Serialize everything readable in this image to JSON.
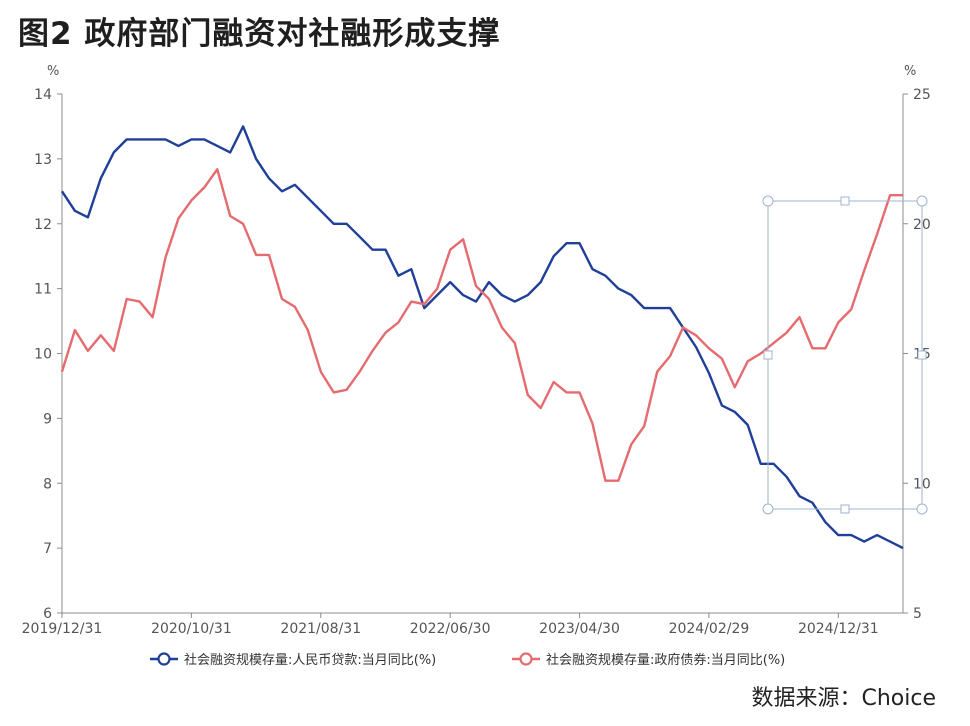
{
  "figure": {
    "title": "图2  政府部门融资对社融形成支撑",
    "source": "数据来源：Choice"
  },
  "chart_data": {
    "type": "line",
    "y_left": {
      "unit": "%",
      "ticks": [
        6,
        7,
        8,
        9,
        10,
        11,
        12,
        13,
        14
      ],
      "lim": [
        6,
        14
      ]
    },
    "y_right": {
      "unit": "%",
      "ticks": [
        5,
        10,
        15,
        20,
        25
      ],
      "lim": [
        5,
        25
      ]
    },
    "x_tick_labels": [
      "2019/12/31",
      "2020/10/31",
      "2021/08/31",
      "2022/06/30",
      "2023/04/30",
      "2024/02/29",
      "2024/12/31"
    ],
    "x_tick_index": [
      0,
      10,
      20,
      30,
      40,
      50,
      60
    ],
    "x_count": 66,
    "grid": false,
    "legend_position": "bottom",
    "series": [
      {
        "name": "社会融资规模存量:人民币贷款:当月同比(%)",
        "axis": "left",
        "color": "#1f3f98",
        "values": [
          12.5,
          12.2,
          12.1,
          12.7,
          13.1,
          13.3,
          13.3,
          13.3,
          13.3,
          13.2,
          13.3,
          13.3,
          13.2,
          13.1,
          13.5,
          13.0,
          12.7,
          12.5,
          12.6,
          12.4,
          12.2,
          12.0,
          12.0,
          11.8,
          11.6,
          11.6,
          11.2,
          11.3,
          10.7,
          10.9,
          11.1,
          10.9,
          10.8,
          11.1,
          10.9,
          10.8,
          10.9,
          11.1,
          11.5,
          11.7,
          11.7,
          11.3,
          11.2,
          11.0,
          10.9,
          10.7,
          10.7,
          10.7,
          10.4,
          10.1,
          9.7,
          9.2,
          9.1,
          8.9,
          8.3,
          8.3,
          8.1,
          7.8,
          7.7,
          7.4,
          7.2,
          7.2,
          7.1,
          7.2,
          7.1,
          7.0
        ]
      },
      {
        "name": "社会融资规模存量:政府债券:当月同比(%)",
        "axis": "right",
        "color": "#e56b6f",
        "values": [
          14.3,
          15.9,
          15.1,
          15.7,
          15.1,
          17.1,
          17.0,
          16.4,
          18.7,
          20.2,
          20.9,
          21.4,
          22.1,
          20.3,
          20.0,
          18.8,
          18.8,
          17.1,
          16.8,
          15.9,
          14.3,
          13.5,
          13.6,
          14.3,
          15.1,
          15.8,
          16.2,
          17.0,
          16.9,
          17.5,
          19.0,
          19.4,
          17.6,
          17.1,
          16.0,
          15.4,
          13.4,
          12.9,
          13.9,
          13.5,
          13.5,
          12.3,
          10.1,
          10.1,
          11.5,
          12.2,
          14.3,
          14.9,
          16.0,
          15.7,
          15.2,
          14.8,
          13.7,
          14.7,
          15.0,
          15.4,
          15.8,
          16.4,
          15.2,
          15.2,
          16.2,
          16.7,
          18.2,
          19.6,
          21.1,
          21.1
        ]
      }
    ]
  }
}
